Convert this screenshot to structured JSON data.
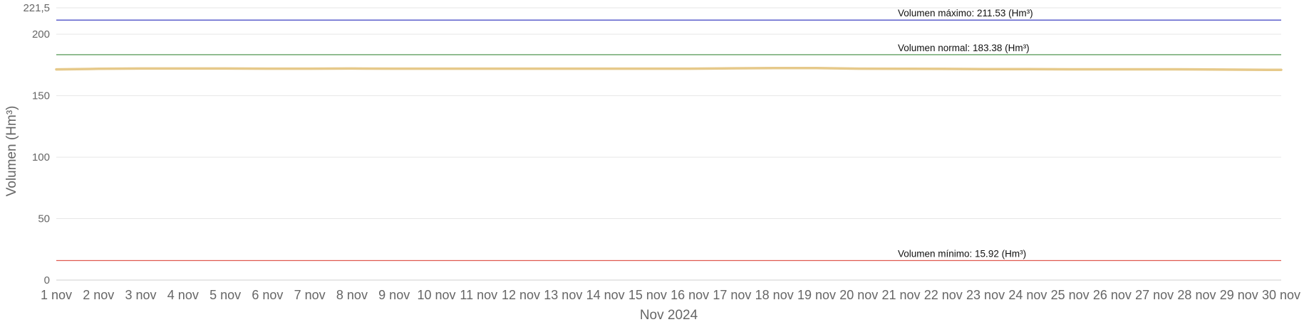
{
  "chart_data": {
    "type": "line",
    "title": "",
    "xlabel": "Nov 2024",
    "ylabel": "Volumen (Hm³)",
    "ylim": [
      0,
      221.5
    ],
    "y_ticks": [
      {
        "value": 0,
        "label": "0"
      },
      {
        "value": 50,
        "label": "50"
      },
      {
        "value": 100,
        "label": "100"
      },
      {
        "value": 150,
        "label": "150"
      },
      {
        "value": 200,
        "label": "200"
      },
      {
        "value": 221.5,
        "label": "221,5"
      }
    ],
    "grid": true,
    "categories": [
      "1 nov",
      "2 nov",
      "3 nov",
      "4 nov",
      "5 nov",
      "6 nov",
      "7 nov",
      "8 nov",
      "9 nov",
      "10 nov",
      "11 nov",
      "12 nov",
      "13 nov",
      "14 nov",
      "15 nov",
      "16 nov",
      "17 nov",
      "18 nov",
      "19 nov",
      "20 nov",
      "21 nov",
      "22 nov",
      "23 nov",
      "24 nov",
      "25 nov",
      "26 nov",
      "27 nov",
      "28 nov",
      "29 nov",
      "30 nov"
    ],
    "series": [
      {
        "color": "#e6c98a",
        "values": [
          171.4,
          171.9,
          172.1,
          172.1,
          172.1,
          172.0,
          172.0,
          172.1,
          172.0,
          172.0,
          172.0,
          172.0,
          172.0,
          172.0,
          172.0,
          172.0,
          172.3,
          172.5,
          172.5,
          172.0,
          171.9,
          171.8,
          171.6,
          171.6,
          171.5,
          171.5,
          171.5,
          171.4,
          171.2,
          171.0
        ]
      }
    ],
    "reference_lines": [
      {
        "value": 211.53,
        "label": "Volumen máximo: 211.53 (Hm³)",
        "color": "#3b3fc2"
      },
      {
        "value": 183.38,
        "label": "Volumen normal: 183.38 (Hm³)",
        "color": "#3f8a3f"
      },
      {
        "value": 15.92,
        "label": "Volumen mínimo: 15.92 (Hm³)",
        "color": "#e05a4f"
      }
    ]
  }
}
